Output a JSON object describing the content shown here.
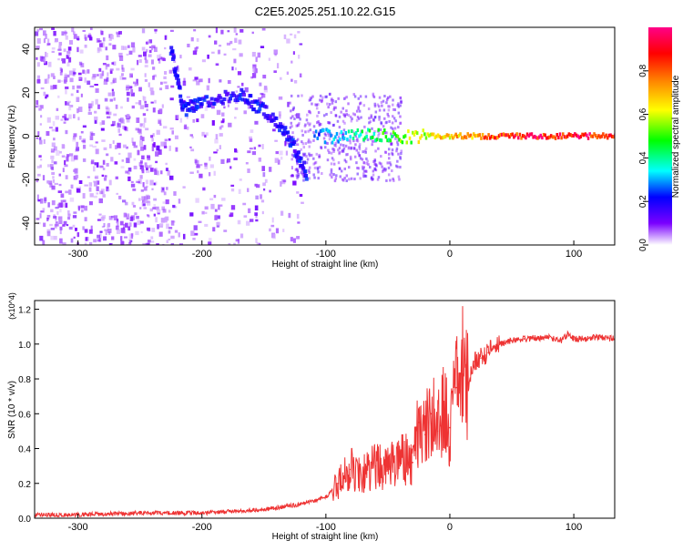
{
  "page_title": "C2E5.2025.251.10.22.G15",
  "chart_data": [
    {
      "type": "heatmap",
      "title": "C2E5.2025.251.10.22.G15",
      "xlabel": "Height of straight line (km)",
      "ylabel": "Frequency (Hz)",
      "xlim": [
        -335,
        133
      ],
      "ylim": [
        -50,
        50
      ],
      "x_ticks": [
        -300,
        -200,
        -100,
        0,
        100
      ],
      "y_ticks": [
        -40,
        -20,
        0,
        20,
        40
      ],
      "grid": false,
      "colorbar": {
        "label": "Normalized spectral amplitude",
        "range": [
          0,
          1
        ],
        "ticks": [
          0.0,
          0.2,
          0.4,
          0.6,
          0.8
        ],
        "colormap": [
          "#ffffff",
          "#7a00ff",
          "#0000ff",
          "#00ffff",
          "#00ff00",
          "#ffff00",
          "#ff8800",
          "#ff0000",
          "#ff0088"
        ]
      },
      "features": [
        {
          "name": "noise",
          "x_range": [
            -335,
            -120
          ],
          "amplitude": 0.12
        },
        {
          "name": "curved-trace",
          "points": [
            [
              -225,
              40
            ],
            [
              -215,
              12
            ],
            [
              -200,
              15
            ],
            [
              -170,
              19
            ],
            [
              -150,
              12
            ],
            [
              -130,
              0
            ],
            [
              -115,
              -18
            ]
          ],
          "amplitude": 0.22
        },
        {
          "name": "zero-line",
          "x_range": [
            -110,
            133
          ],
          "frequency": 0,
          "amplitude_start": 0.3,
          "amplitude_end": 0.95
        }
      ]
    },
    {
      "type": "line",
      "xlabel": "Height of straight line (km)",
      "ylabel": "SNR (10 * v/v)",
      "y_multiplier": "(x10^4)",
      "xlim": [
        -335,
        133
      ],
      "ylim": [
        0,
        1.25
      ],
      "x_ticks": [
        -300,
        -200,
        -100,
        0,
        100
      ],
      "y_ticks": [
        0.0,
        0.2,
        0.4,
        0.6,
        0.8,
        1.0,
        1.2
      ],
      "grid": false,
      "series_color": "#ee3333",
      "series": [
        {
          "x": [
            -335,
            -300,
            -250,
            -200,
            -150,
            -120,
            -100,
            -90,
            -80,
            -70,
            -60,
            -50,
            -40,
            -30,
            -25,
            -20,
            -15,
            -10,
            -5,
            0,
            5,
            10,
            15,
            20,
            25,
            30,
            40,
            50,
            60,
            80,
            90,
            95,
            100,
            110,
            120,
            133
          ],
          "values": [
            0.02,
            0.02,
            0.03,
            0.03,
            0.05,
            0.08,
            0.12,
            0.2,
            0.28,
            0.25,
            0.3,
            0.28,
            0.35,
            0.32,
            0.55,
            0.48,
            0.6,
            0.5,
            0.65,
            0.52,
            0.75,
            0.85,
            0.78,
            0.9,
            0.92,
            0.95,
            1.0,
            1.02,
            1.03,
            1.04,
            1.02,
            1.06,
            1.03,
            1.03,
            1.04,
            1.03
          ]
        }
      ]
    }
  ]
}
